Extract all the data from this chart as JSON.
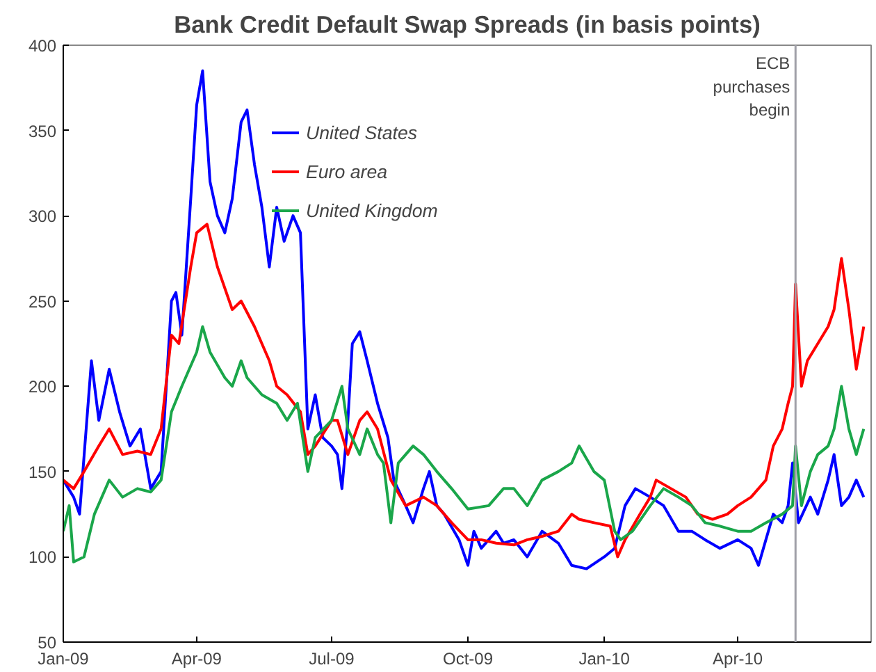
{
  "chart_data": {
    "type": "line",
    "title": "Bank Credit Default Swap Spreads (in basis points)",
    "x": [
      "2009-01-01",
      "2009-01-08",
      "2009-01-12",
      "2009-01-20",
      "2009-01-25",
      "2009-02-01",
      "2009-02-08",
      "2009-02-15",
      "2009-02-22",
      "2009-03-01",
      "2009-03-08",
      "2009-03-15",
      "2009-03-18",
      "2009-03-22",
      "2009-03-28",
      "2009-04-01",
      "2009-04-05",
      "2009-04-10",
      "2009-04-15",
      "2009-04-20",
      "2009-04-25",
      "2009-05-01",
      "2009-05-05",
      "2009-05-10",
      "2009-05-15",
      "2009-05-20",
      "2009-05-25",
      "2009-05-30",
      "2009-06-05",
      "2009-06-10",
      "2009-06-15",
      "2009-06-20",
      "2009-06-25",
      "2009-07-01",
      "2009-07-05",
      "2009-07-08",
      "2009-07-12",
      "2009-07-15",
      "2009-07-20",
      "2009-07-25",
      "2009-08-01",
      "2009-08-08",
      "2009-08-12",
      "2009-08-20",
      "2009-08-25",
      "2009-09-01",
      "2009-09-05",
      "2009-09-10",
      "2009-09-15",
      "2009-09-25",
      "2009-10-01",
      "2009-10-05",
      "2009-10-10",
      "2009-10-20",
      "2009-10-25",
      "2009-11-01",
      "2009-11-10",
      "2009-11-20",
      "2009-12-01",
      "2009-12-10",
      "2009-12-20",
      "2010-01-01",
      "2010-01-08",
      "2010-01-15",
      "2010-01-22",
      "2010-02-01",
      "2010-02-10",
      "2010-02-20",
      "2010-03-01",
      "2010-03-10",
      "2010-03-20",
      "2010-04-01",
      "2010-04-10",
      "2010-04-15",
      "2010-04-20",
      "2010-04-25",
      "2010-05-01",
      "2010-05-05",
      "2010-05-08",
      "2010-05-12",
      "2010-05-20",
      "2010-05-25",
      "2010-06-01",
      "2010-06-05",
      "2010-06-10",
      "2010-06-15",
      "2010-06-20",
      "2010-06-25"
    ],
    "series": [
      {
        "name": "United States",
        "color": "#0000ff",
        "values": [
          145,
          135,
          125,
          215,
          180,
          210,
          185,
          165,
          175,
          140,
          150,
          250,
          255,
          230,
          310,
          365,
          385,
          320,
          300,
          290,
          310,
          355,
          362,
          330,
          305,
          270,
          305,
          285,
          300,
          290,
          175,
          195,
          170,
          165,
          160,
          140,
          180,
          225,
          232,
          215,
          190,
          170,
          145,
          130,
          120,
          140,
          150,
          130,
          125,
          110,
          95,
          115,
          105,
          115,
          108,
          110,
          100,
          115,
          108,
          95,
          93,
          100,
          105,
          130,
          140,
          135,
          130,
          115,
          115,
          110,
          105,
          110,
          105,
          95,
          110,
          125,
          120,
          130,
          155,
          120,
          135,
          125,
          145,
          160,
          130,
          135,
          145,
          135
        ]
      },
      {
        "name": "Euro area",
        "color": "#ff0000",
        "x": [
          "2009-01-01",
          "2009-01-08",
          "2009-01-15",
          "2009-01-25",
          "2009-02-01",
          "2009-02-10",
          "2009-02-20",
          "2009-03-01",
          "2009-03-08",
          "2009-03-15",
          "2009-03-20",
          "2009-03-28",
          "2009-04-01",
          "2009-04-08",
          "2009-04-15",
          "2009-04-25",
          "2009-05-01",
          "2009-05-10",
          "2009-05-20",
          "2009-05-25",
          "2009-06-01",
          "2009-06-10",
          "2009-06-15",
          "2009-06-20",
          "2009-07-01",
          "2009-07-05",
          "2009-07-12",
          "2009-07-20",
          "2009-07-25",
          "2009-08-01",
          "2009-08-10",
          "2009-08-20",
          "2009-09-01",
          "2009-09-10",
          "2009-09-20",
          "2009-10-01",
          "2009-10-10",
          "2009-10-20",
          "2009-11-01",
          "2009-11-10",
          "2009-11-20",
          "2009-12-01",
          "2009-12-10",
          "2009-12-15",
          "2009-12-25",
          "2010-01-05",
          "2010-01-10",
          "2010-01-15",
          "2010-01-25",
          "2010-02-01",
          "2010-02-05",
          "2010-02-15",
          "2010-02-25",
          "2010-03-05",
          "2010-03-15",
          "2010-03-25",
          "2010-04-01",
          "2010-04-10",
          "2010-04-20",
          "2010-04-25",
          "2010-05-01",
          "2010-05-05",
          "2010-05-08",
          "2010-05-10",
          "2010-05-14",
          "2010-05-18",
          "2010-05-25",
          "2010-06-01",
          "2010-06-05",
          "2010-06-10",
          "2010-06-15",
          "2010-06-20",
          "2010-06-25"
        ],
        "values": [
          145,
          140,
          150,
          165,
          175,
          160,
          162,
          160,
          175,
          230,
          225,
          270,
          290,
          295,
          270,
          245,
          250,
          235,
          215,
          200,
          195,
          185,
          160,
          165,
          180,
          180,
          160,
          180,
          185,
          175,
          145,
          130,
          135,
          130,
          120,
          110,
          110,
          108,
          107,
          110,
          112,
          115,
          125,
          122,
          120,
          118,
          100,
          110,
          125,
          135,
          145,
          140,
          135,
          125,
          122,
          125,
          130,
          135,
          145,
          165,
          175,
          190,
          200,
          260,
          200,
          215,
          225,
          235,
          245,
          275,
          245,
          210,
          235
        ]
      },
      {
        "name": "United Kingdom",
        "color": "#1aa64a",
        "x": [
          "2009-01-01",
          "2009-01-05",
          "2009-01-08",
          "2009-01-15",
          "2009-01-22",
          "2009-02-01",
          "2009-02-10",
          "2009-02-20",
          "2009-03-01",
          "2009-03-08",
          "2009-03-15",
          "2009-03-22",
          "2009-04-01",
          "2009-04-05",
          "2009-04-10",
          "2009-04-20",
          "2009-04-25",
          "2009-05-01",
          "2009-05-05",
          "2009-05-15",
          "2009-05-25",
          "2009-06-01",
          "2009-06-08",
          "2009-06-15",
          "2009-06-20",
          "2009-07-01",
          "2009-07-08",
          "2009-07-12",
          "2009-07-20",
          "2009-07-25",
          "2009-08-01",
          "2009-08-05",
          "2009-08-10",
          "2009-08-15",
          "2009-08-25",
          "2009-09-01",
          "2009-09-10",
          "2009-09-20",
          "2009-10-01",
          "2009-10-15",
          "2009-10-25",
          "2009-11-01",
          "2009-11-10",
          "2009-11-20",
          "2009-12-01",
          "2009-12-10",
          "2009-12-15",
          "2009-12-25",
          "2010-01-01",
          "2010-01-08",
          "2010-01-12",
          "2010-01-20",
          "2010-02-01",
          "2010-02-10",
          "2010-02-20",
          "2010-03-01",
          "2010-03-10",
          "2010-03-20",
          "2010-04-01",
          "2010-04-10",
          "2010-04-20",
          "2010-05-01",
          "2010-05-08",
          "2010-05-10",
          "2010-05-14",
          "2010-05-20",
          "2010-05-25",
          "2010-06-01",
          "2010-06-05",
          "2010-06-10",
          "2010-06-15",
          "2010-06-20",
          "2010-06-25"
        ],
        "values": [
          115,
          130,
          97,
          100,
          125,
          145,
          135,
          140,
          138,
          145,
          185,
          200,
          220,
          235,
          220,
          205,
          200,
          215,
          205,
          195,
          190,
          180,
          190,
          150,
          170,
          180,
          200,
          175,
          160,
          175,
          160,
          155,
          120,
          155,
          165,
          160,
          150,
          140,
          128,
          130,
          140,
          140,
          130,
          145,
          150,
          155,
          165,
          150,
          145,
          115,
          110,
          115,
          130,
          140,
          135,
          130,
          120,
          118,
          115,
          115,
          120,
          125,
          130,
          165,
          130,
          150,
          160,
          165,
          175,
          200,
          175,
          160,
          175
        ]
      }
    ],
    "xlim": [
      "2009-01-01",
      "2010-06-30"
    ],
    "xticks": [
      {
        "value": "2009-01-01",
        "label": "Jan-09"
      },
      {
        "value": "2009-04-01",
        "label": "Apr-09"
      },
      {
        "value": "2009-07-01",
        "label": "Jul-09"
      },
      {
        "value": "2009-10-01",
        "label": "Oct-09"
      },
      {
        "value": "2010-01-01",
        "label": "Jan-10"
      },
      {
        "value": "2010-04-01",
        "label": "Apr-10"
      }
    ],
    "ylim": [
      50,
      400
    ],
    "yticks": [
      50,
      100,
      150,
      200,
      250,
      300,
      350,
      400
    ],
    "ref_lines": [
      {
        "axis": "x",
        "value": "2010-05-10",
        "label": "ECB purchases begin",
        "color": "#a0a0a8"
      }
    ],
    "legend": "top left",
    "grid": false,
    "marker": "none",
    "line_style": "solid"
  }
}
